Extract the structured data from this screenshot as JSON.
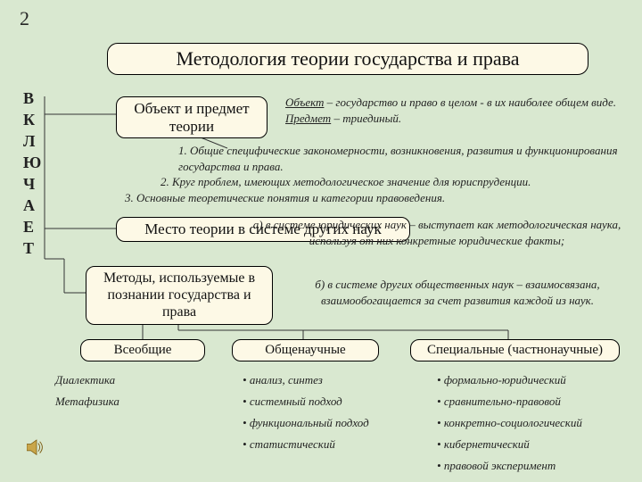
{
  "slide_number": "2",
  "title": "Методология теории государства и права",
  "vertical_label": [
    "В",
    "К",
    "Л",
    "Ю",
    "Ч",
    "А",
    "Е",
    "Т"
  ],
  "box1": "Объект и предмет теории",
  "objpred_lines": [
    {
      "u": "Объект",
      "rest": " – государство и право в целом - в их наиболее общем виде."
    },
    {
      "u": "Предмет",
      "rest": " – триединый."
    }
  ],
  "triad": [
    "1. Общие специфические закономерности, возникновения, развития и функционирования государства и права.",
    "2. Круг проблем, имеющих методологическое значение для юриспруденции.",
    "3. Основные теоретические понятия и категории правоведения."
  ],
  "box2": "Место теории в системе других наук",
  "ab_a": "а) в системе юридических наук – выступает как методологическая наука, используя от них конкретные юридические факты;",
  "ab_b": "б) в системе других общественных наук – взаимосвязана, взаимообогащается за счет развития каждой из наук.",
  "box3": "Методы, используемые в познании государства и права",
  "box4": "Всеобщие",
  "box5": "Общенаучные",
  "box6": "Специальные (частнонаучные)",
  "col1": [
    "Диалектика",
    "Метафизика"
  ],
  "col2": [
    "анализ, синтез",
    "системный подход",
    "функциональный подход",
    "статистический"
  ],
  "col3": [
    "формально-юридический",
    "сравнительно-правовой",
    "конкретно-социологический",
    "кибернетический",
    "правовой эксперимент"
  ],
  "colors": {
    "bg": "#d9e8d0",
    "box_bg": "#fdf9e6",
    "line": "#333333"
  }
}
